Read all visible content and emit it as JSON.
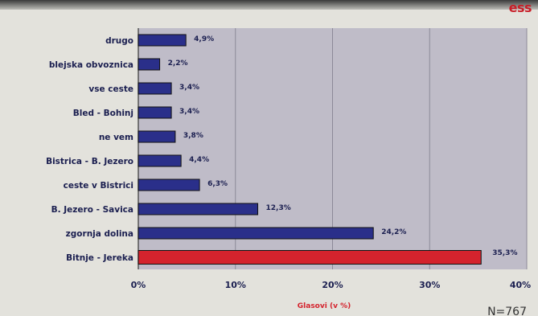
{
  "logo": "ess",
  "footnote": "N=767",
  "colors": {
    "default_bar": "#2a2f8a",
    "highlight_bar": "#d4232d",
    "plot_bg": "#bfbcc8",
    "label_text": "#1b1f50"
  },
  "chart_data": {
    "type": "bar",
    "orientation": "horizontal",
    "title": "",
    "xlabel": "Glasovi (v %)",
    "ylabel": "",
    "xlim": [
      0,
      40
    ],
    "xticks": [
      0,
      10,
      20,
      30,
      40
    ],
    "xtick_labels": [
      "0%",
      "10%",
      "20%",
      "30%",
      "40%"
    ],
    "grid": true,
    "categories": [
      "drugo",
      "blejska obvoznica",
      "vse ceste",
      "Bled - Bohinj",
      "ne vem",
      "Bistrica - B. Jezero",
      "ceste v Bistrici",
      "B. Jezero - Savica",
      "zgornja dolina",
      "Bitnje - Jereka"
    ],
    "values": [
      4.9,
      2.2,
      3.4,
      3.4,
      3.8,
      4.4,
      6.3,
      12.3,
      24.2,
      35.3
    ],
    "value_labels": [
      "4,9%",
      "2,2%",
      "3,4%",
      "3,4%",
      "3,8%",
      "4,4%",
      "6,3%",
      "12,3%",
      "24,2%",
      "35,3%"
    ],
    "highlight": "Bitnje - Jereka"
  }
}
